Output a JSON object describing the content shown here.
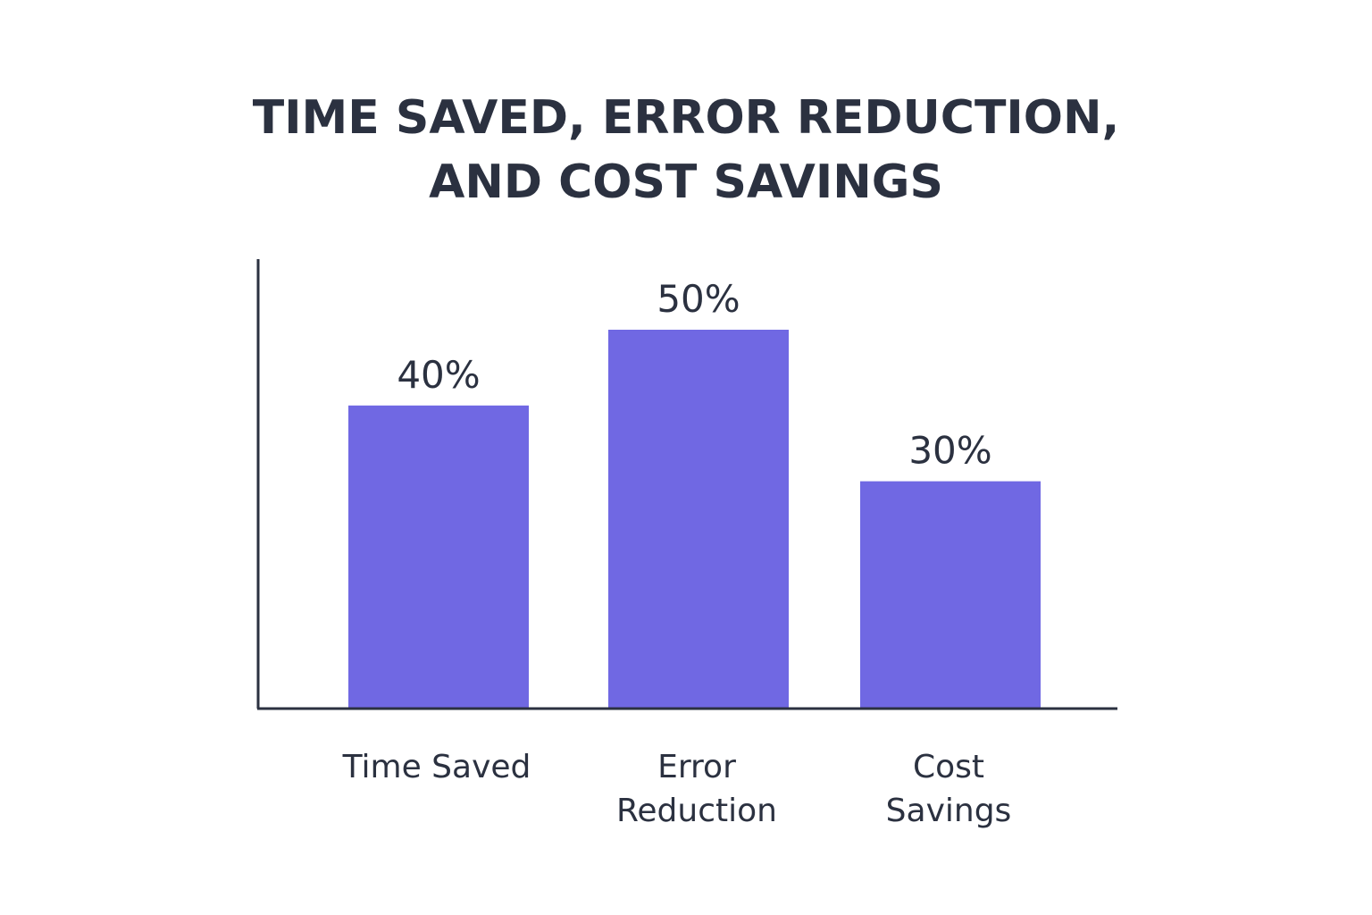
{
  "chart_data": {
    "type": "bar",
    "title_lines": [
      "TIME SAVED, ERROR REDUCTION,",
      "AND COST SAVINGS"
    ],
    "categories": [
      "Time Saved",
      "Error Reduction",
      "Cost Savings"
    ],
    "category_label_lines": [
      [
        "Time Saved"
      ],
      [
        "Error",
        "Reduction"
      ],
      [
        "Cost",
        "Savings"
      ]
    ],
    "values": [
      40,
      50,
      30
    ],
    "value_labels": [
      "40%",
      "50%",
      "30%"
    ],
    "unit": "%",
    "xlabel": "",
    "ylabel": "",
    "ylim": [
      0,
      60
    ],
    "grid": false,
    "legend": "none",
    "colors": {
      "bar": "#7068e3",
      "axis": "#2b3140",
      "text": "#2b3140"
    }
  }
}
